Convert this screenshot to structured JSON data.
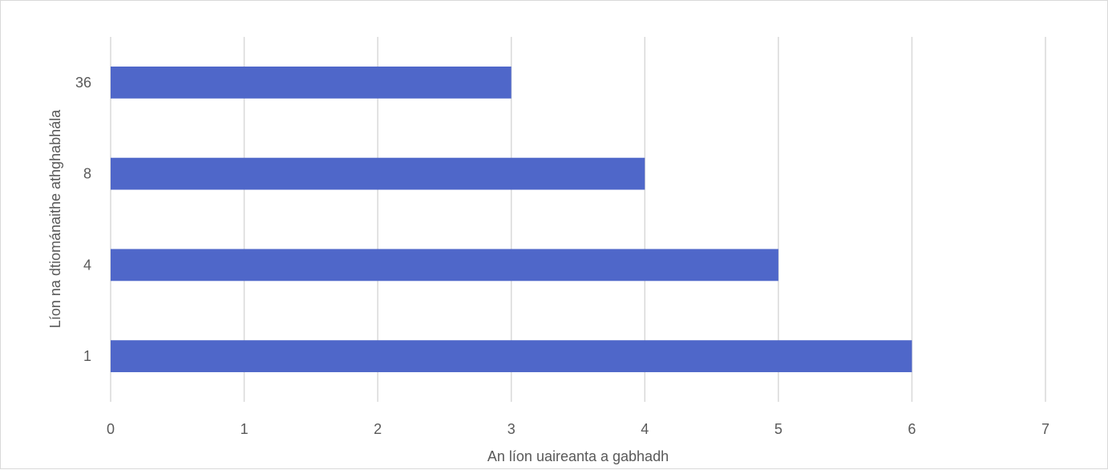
{
  "chart_data": {
    "type": "bar",
    "orientation": "horizontal",
    "title": "",
    "categories": [
      "1",
      "4",
      "8",
      "36"
    ],
    "values": [
      6,
      5,
      4,
      3
    ],
    "xlabel": "An líon uaireanta a gabhadh",
    "ylabel": "Líon na dtiománaithe athghabhála",
    "xlim": [
      0,
      7
    ],
    "xticks": [
      "0",
      "1",
      "2",
      "3",
      "4",
      "5",
      "6",
      "7"
    ],
    "grid": true,
    "legend": "none",
    "colors": {
      "bar": "#4F67C9",
      "grid": "#d9d9d9",
      "text": "#595959"
    }
  }
}
